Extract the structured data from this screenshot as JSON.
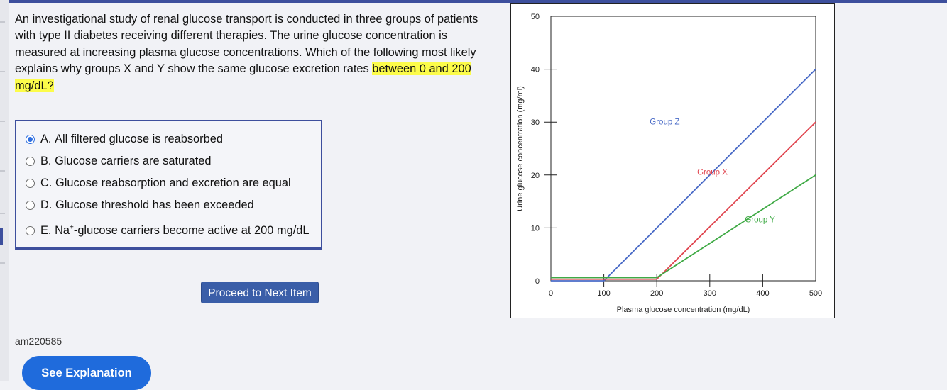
{
  "question": {
    "text_before": "An investigational study of renal glucose transport is conducted in three groups of patients with type II diabetes receiving different therapies. The urine glucose concentration is measured at increasing plasma glucose concentrations. Which of the following most likely explains why groups X and Y show the same glucose excretion rates ",
    "text_highlight": "between 0 and 200 mg/dL?"
  },
  "answers": [
    {
      "letter": "A.",
      "text": "All filtered glucose is reabsorbed",
      "selected": true
    },
    {
      "letter": "B.",
      "text": "Glucose carriers are saturated",
      "selected": false
    },
    {
      "letter": "C.",
      "text": "Glucose reabsorption and excretion are equal",
      "selected": false
    },
    {
      "letter": "D.",
      "text": "Glucose threshold has been exceeded",
      "selected": false
    },
    {
      "letter": "E.",
      "text_pre": "Na",
      "text_sup": "+",
      "text_post": "-glucose carriers become active at 200 mg/dL",
      "selected": false
    }
  ],
  "proceed_label": "Proceed to Next Item",
  "question_id": "am220585",
  "explanation_label": "See Explanation",
  "chart_data": {
    "type": "line",
    "xlabel": "Plasma glucose concentration (mg/dL)",
    "ylabel": "Urine glucose concentration (mg/ml)",
    "xlim": [
      0,
      500
    ],
    "ylim": [
      0,
      50
    ],
    "xticks": [
      0,
      100,
      200,
      300,
      400,
      500
    ],
    "yticks": [
      0,
      10,
      20,
      30,
      40,
      50
    ],
    "grid": false,
    "series": [
      {
        "name": "Group Z",
        "color": "#4a6bc7",
        "x": [
          0,
          100,
          500
        ],
        "y": [
          0,
          0,
          40
        ]
      },
      {
        "name": "Group X",
        "color": "#e0454f",
        "x": [
          0,
          200,
          500
        ],
        "y": [
          0.3,
          0.3,
          30
        ]
      },
      {
        "name": "Group Y",
        "color": "#3faa45",
        "x": [
          0,
          200,
          500
        ],
        "y": [
          0.6,
          0.6,
          20
        ]
      }
    ]
  }
}
